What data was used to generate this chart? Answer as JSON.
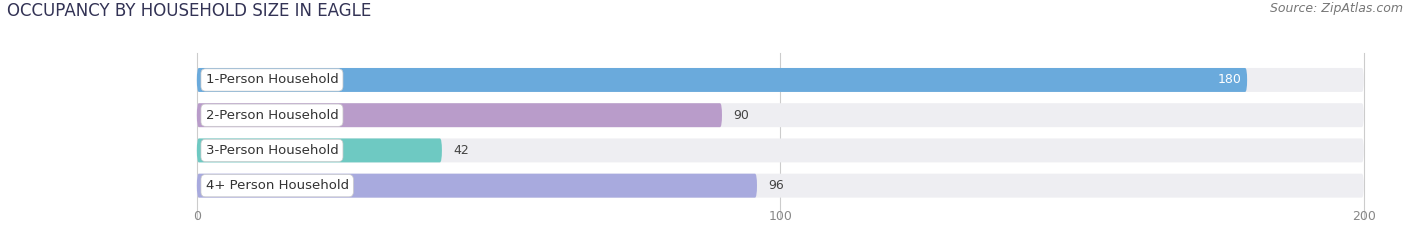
{
  "title": "OCCUPANCY BY HOUSEHOLD SIZE IN EAGLE",
  "source": "Source: ZipAtlas.com",
  "categories": [
    "1-Person Household",
    "2-Person Household",
    "3-Person Household",
    "4+ Person Household"
  ],
  "values": [
    180,
    90,
    42,
    96
  ],
  "bar_colors": [
    "#6aaadc",
    "#b99cca",
    "#6ec9c2",
    "#a8aade"
  ],
  "xlim": [
    0,
    200
  ],
  "xticks": [
    0,
    100,
    200
  ],
  "title_fontsize": 12,
  "source_fontsize": 9,
  "label_fontsize": 9.5,
  "value_fontsize": 9,
  "background_color": "#ffffff",
  "bar_background_color": "#eeeef2",
  "bar_height": 0.68,
  "bar_gap": 1.0
}
